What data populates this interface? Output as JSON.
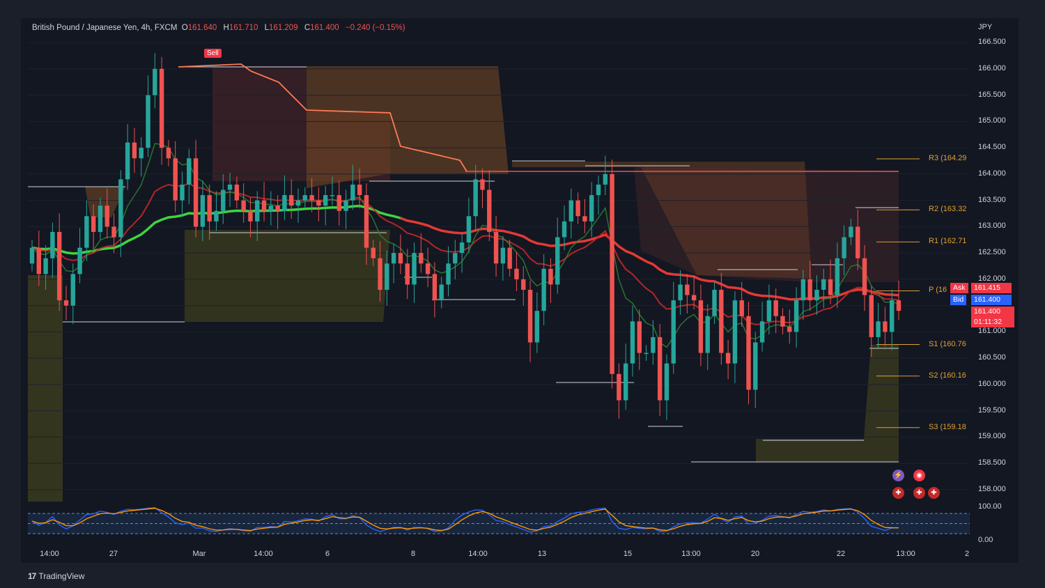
{
  "header": {
    "symbol": "British Pound / Japanese Yen, 4h, FXCM",
    "o_label": "O",
    "o": "161.640",
    "h_label": "H",
    "h": "161.710",
    "l_label": "L",
    "l": "161.209",
    "c_label": "C",
    "c": "161.400",
    "change": "−0.240 (−0.15%)"
  },
  "currency": "JPY",
  "y_ticks": [
    "166.500",
    "166.000",
    "165.500",
    "165.000",
    "164.500",
    "164.000",
    "163.500",
    "163.000",
    "162.500",
    "162.000",
    "161.000",
    "160.500",
    "160.000",
    "159.500",
    "159.000",
    "158.500",
    "158.000"
  ],
  "osc_ticks": [
    "100.00",
    "0.00"
  ],
  "x_ticks": [
    "14:00",
    "27",
    "Mar",
    "14:00",
    "6",
    "8",
    "14:00",
    "13",
    "15",
    "13:00",
    "20",
    "22",
    "13:00",
    "2"
  ],
  "pivots": [
    {
      "label": "R3 (164.29",
      "value": 164.29
    },
    {
      "label": "R2 (163.32",
      "value": 163.32
    },
    {
      "label": "R1 (162.71",
      "value": 162.71
    },
    {
      "label": "P (16",
      "value": 161.78
    },
    {
      "label": "S1 (160.76",
      "value": 160.76
    },
    {
      "label": "S2 (160.16",
      "value": 160.16
    },
    {
      "label": "S3 (159.18",
      "value": 159.18
    }
  ],
  "price_tags": {
    "ask_label": "Ask",
    "ask": "161.415",
    "bid_label": "Bid",
    "bid": "161.400",
    "last": "161.400",
    "countdown": "01:11:32"
  },
  "sell_label": "Sell",
  "brand": "TradingView",
  "colors": {
    "up": "#26a69a",
    "down": "#ef5350",
    "pivot": "#e0a133",
    "ask": "#f23645",
    "bid": "#2962ff"
  },
  "chart_data": {
    "type": "candlestick",
    "title": "British Pound / Japanese Yen, 4h, FXCM",
    "ylim": [
      157.8,
      166.7
    ],
    "ylabel": "JPY",
    "closes": [
      162.6,
      162.1,
      162.4,
      162.9,
      161.6,
      161.5,
      162.1,
      162.6,
      163.2,
      162.9,
      163.4,
      163.0,
      162.8,
      163.9,
      164.6,
      164.3,
      164.5,
      165.5,
      166.0,
      164.5,
      164.3,
      163.5,
      163.8,
      164.3,
      163.0,
      163.6,
      163.1,
      163.3,
      163.7,
      163.8,
      163.5,
      163.3,
      163.1,
      163.5,
      163.3,
      163.4,
      163.3,
      163.6,
      163.4,
      163.5,
      163.6,
      163.5,
      163.4,
      163.6,
      163.6,
      163.3,
      163.5,
      163.8,
      163.6,
      162.6,
      162.4,
      161.8,
      162.3,
      162.5,
      162.3,
      161.9,
      162.5,
      162.3,
      162.1,
      161.6,
      161.9,
      162.3,
      162.5,
      162.7,
      163.2,
      163.9,
      163.7,
      162.9,
      162.3,
      162.6,
      162.2,
      162.0,
      161.8,
      160.8,
      161.4,
      162.2,
      161.9,
      162.8,
      163.1,
      163.5,
      163.2,
      163.1,
      163.6,
      163.8,
      164.0,
      160.2,
      159.7,
      160.4,
      161.2,
      160.6,
      160.6,
      160.9,
      159.7,
      160.4,
      161.6,
      161.9,
      161.7,
      161.6,
      160.6,
      161.3,
      161.8,
      160.6,
      160.4,
      161.6,
      161.3,
      159.9,
      160.8,
      161.2,
      161.6,
      161.3,
      161.1,
      161.0,
      161.6,
      162.0,
      161.6,
      161.8,
      162.0,
      161.7,
      162.4,
      162.8,
      163.0,
      162.4,
      161.7,
      160.9,
      161.2,
      161.0,
      161.6,
      161.4
    ],
    "oscillator": {
      "range": [
        0,
        100
      ],
      "levels": [
        20,
        50,
        80
      ]
    }
  }
}
